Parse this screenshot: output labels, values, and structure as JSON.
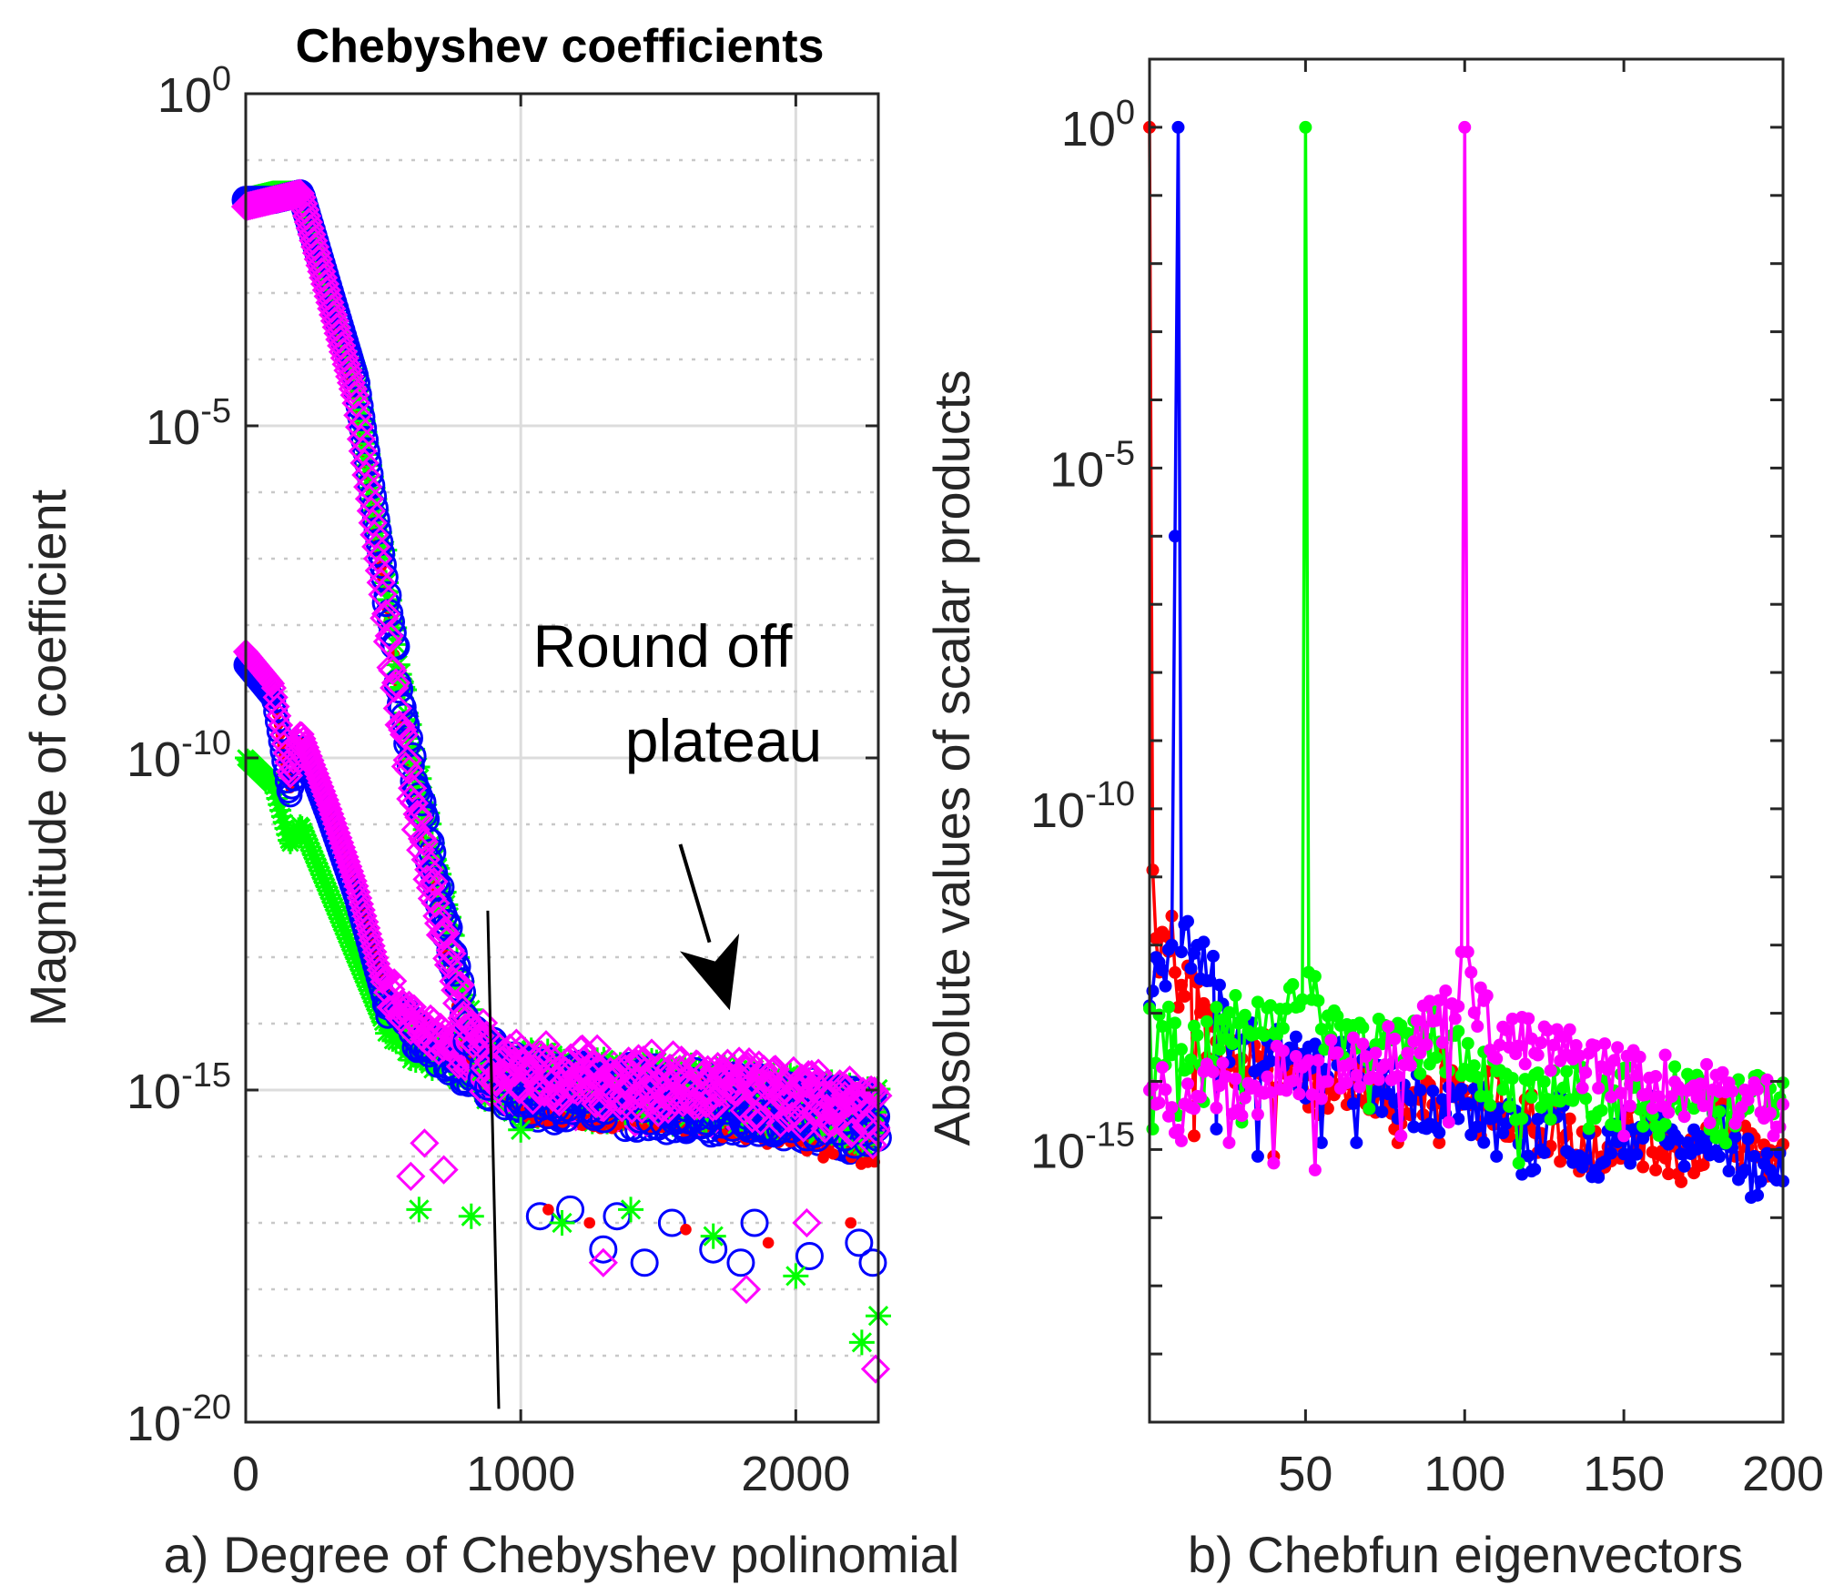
{
  "chart_data": [
    {
      "type": "scatter",
      "panel": "a",
      "title": "Chebyshev coefficients",
      "xlabel": "a) Degree of Chebyshev polinomial",
      "ylabel": "Magnitude of coefficient",
      "xlim": [
        0,
        2300
      ],
      "ylim_log10": [
        -20,
        0
      ],
      "x_ticks": [
        {
          "value": 0,
          "label": "0"
        },
        {
          "value": 1000,
          "label": "1000"
        },
        {
          "value": 2000,
          "label": "2000"
        }
      ],
      "y_ticks": [
        {
          "exp": 0,
          "base": "10",
          "sup": "0"
        },
        {
          "exp": -5,
          "base": "10",
          "sup": "-5"
        },
        {
          "exp": -10,
          "base": "10",
          "sup": "-10"
        },
        {
          "exp": -15,
          "base": "10",
          "sup": "-15"
        },
        {
          "exp": -20,
          "base": "10",
          "sup": "-20"
        }
      ],
      "grid": true,
      "annotation": {
        "lines": [
          "Round off",
          "plateau"
        ],
        "arrow_from": [
          1580,
          -11.3
        ],
        "arrow_to": [
          1760,
          -13.8
        ]
      },
      "cutoff_line": {
        "x": [
          880,
          920
        ],
        "log10_y": [
          -12.3,
          -19.8
        ]
      },
      "series": [
        {
          "name": "red",
          "color": "#ff0000",
          "marker": "dot",
          "x": [
            0,
            100,
            200,
            400,
            600,
            800,
            900,
            1000,
            1200,
            1500,
            1800,
            2100,
            2300
          ],
          "log10_y": [
            -1.7,
            -1.6,
            -1.5,
            -4.5,
            -10.2,
            -14.2,
            -14.8,
            -15.0,
            -15.1,
            -15.2,
            -15.3,
            -15.6,
            -15.8
          ]
        },
        {
          "name": "blue",
          "color": "#0000ff",
          "marker": "circle",
          "x": [
            0,
            100,
            200,
            400,
            600,
            800,
            900,
            1000,
            1200,
            1500,
            1800,
            2100,
            2300
          ],
          "log10_y": [
            -1.6,
            -1.6,
            -1.5,
            -4.3,
            -10.0,
            -14.0,
            -14.7,
            -14.9,
            -15.0,
            -15.1,
            -15.2,
            -15.3,
            -15.5
          ]
        },
        {
          "name": "green",
          "color": "#00ff00",
          "marker": "asterisk",
          "x": [
            0,
            100,
            200,
            400,
            600,
            800,
            900,
            1000,
            1200,
            1500,
            1800,
            2100,
            2300
          ],
          "log10_y": [
            -1.6,
            -1.5,
            -1.5,
            -4.2,
            -9.8,
            -13.9,
            -14.6,
            -14.8,
            -14.9,
            -15.0,
            -15.1,
            -15.3,
            -15.4
          ]
        },
        {
          "name": "magenta",
          "color": "#ff00ff",
          "marker": "diamond",
          "x": [
            0,
            100,
            200,
            400,
            600,
            800,
            900,
            1000,
            1200,
            1500,
            1800,
            2100,
            2300
          ],
          "log10_y": [
            -1.7,
            -1.6,
            -1.5,
            -4.6,
            -10.6,
            -14.0,
            -14.5,
            -14.7,
            -14.8,
            -14.9,
            -15.0,
            -15.2,
            -15.4
          ]
        }
      ],
      "secondary_series": [
        {
          "name": "red",
          "color": "#ff0000",
          "x": [
            0,
            100,
            160,
            200,
            300,
            400,
            500,
            600,
            700,
            800,
            1000,
            1500,
            2000,
            2300
          ],
          "log10_y": [
            -8.5,
            -9.0,
            -10.5,
            -9.7,
            -10.8,
            -12.0,
            -13.5,
            -14.0,
            -14.3,
            -14.6,
            -15.0,
            -15.2,
            -15.3,
            -15.6
          ]
        },
        {
          "name": "blue",
          "color": "#0000ff",
          "x": [
            0,
            100,
            160,
            200,
            300,
            400,
            500,
            600,
            700,
            800,
            1000,
            1500,
            2000,
            2300
          ],
          "log10_y": [
            -8.6,
            -9.1,
            -10.6,
            -9.8,
            -10.9,
            -12.1,
            -13.6,
            -14.1,
            -14.4,
            -14.7,
            -15.0,
            -15.2,
            -15.3,
            -15.6
          ]
        },
        {
          "name": "green",
          "color": "#00ff00",
          "x": [
            0,
            100,
            160,
            200,
            300,
            400,
            500,
            600,
            700,
            800,
            1000,
            1500,
            2000,
            2300
          ],
          "log10_y": [
            -10.0,
            -10.4,
            -11.3,
            -11.0,
            -12.0,
            -13.0,
            -14.0,
            -14.3,
            -14.5,
            -14.7,
            -15.0,
            -15.1,
            -15.2,
            -15.4
          ]
        },
        {
          "name": "magenta",
          "color": "#ff00ff",
          "x": [
            0,
            100,
            160,
            200,
            300,
            400,
            500,
            600,
            700,
            800,
            1000,
            1500,
            2000,
            2300
          ],
          "log10_y": [
            -8.4,
            -8.9,
            -10.3,
            -9.6,
            -10.7,
            -11.9,
            -13.4,
            -13.9,
            -14.2,
            -14.5,
            -14.9,
            -15.1,
            -15.2,
            -15.5
          ]
        }
      ],
      "outliers": [
        {
          "color": "#0000ff",
          "marker": "circle",
          "x": [
            1070,
            1180,
            1300,
            1350,
            1450,
            1550,
            1700,
            1800,
            1850,
            2050,
            2230,
            2280
          ],
          "log10_y": [
            -16.9,
            -16.8,
            -17.4,
            -16.9,
            -17.6,
            -17.0,
            -17.4,
            -17.6,
            -17.0,
            -17.5,
            -17.3,
            -17.6
          ]
        },
        {
          "color": "#ff00ff",
          "marker": "diamond",
          "x": [
            600,
            650,
            720,
            1300,
            1820,
            2040,
            2290
          ],
          "log10_y": [
            -16.3,
            -15.8,
            -16.2,
            -17.6,
            -18.0,
            -17.0,
            -19.2
          ]
        },
        {
          "color": "#00ff00",
          "marker": "asterisk",
          "x": [
            630,
            820,
            1000,
            1150,
            1400,
            1700,
            2000,
            2240,
            2300
          ],
          "log10_y": [
            -16.8,
            -16.9,
            -15.6,
            -17.0,
            -16.8,
            -17.2,
            -17.8,
            -18.8,
            -18.4
          ]
        },
        {
          "color": "#ff0000",
          "marker": "dot",
          "x": [
            1100,
            1250,
            1600,
            1900,
            2200
          ],
          "log10_y": [
            -16.8,
            -17.0,
            -17.1,
            -17.3,
            -17.0
          ]
        }
      ]
    },
    {
      "type": "line",
      "panel": "b",
      "title": "",
      "xlabel": "b) Chebfun eigenvectors",
      "ylabel": "Absolute values of scalar products",
      "xlim": [
        1,
        200
      ],
      "ylim_log10": [
        -19,
        1
      ],
      "x_ticks": [
        {
          "value": 50,
          "label": "50"
        },
        {
          "value": 100,
          "label": "100"
        },
        {
          "value": 150,
          "label": "150"
        },
        {
          "value": 200,
          "label": "200"
        }
      ],
      "y_ticks": [
        {
          "exp": 0,
          "base": "10",
          "sup": "0"
        },
        {
          "exp": -5,
          "base": "10",
          "sup": "-5"
        },
        {
          "exp": -10,
          "base": "10",
          "sup": "-10"
        },
        {
          "exp": -15,
          "base": "10",
          "sup": "-15"
        }
      ],
      "grid": false,
      "series": [
        {
          "name": "red",
          "color": "#ff0000",
          "peak_index": 1,
          "x": [
            1,
            2,
            3,
            4,
            5,
            8,
            10,
            15,
            20,
            30,
            40,
            50,
            60,
            70,
            80,
            90,
            100,
            110,
            120,
            130,
            140,
            150,
            160,
            170,
            180,
            190,
            200
          ],
          "log10_y": [
            0.0,
            -10.9,
            -11.9,
            -12.3,
            -12.1,
            -11.9,
            -12.6,
            -12.8,
            -13.4,
            -13.8,
            -13.6,
            -14.0,
            -14.1,
            -14.0,
            -14.6,
            -13.9,
            -14.2,
            -14.3,
            -14.6,
            -14.8,
            -15.0,
            -14.7,
            -14.9,
            -15.1,
            -14.6,
            -15.0,
            -15.2
          ]
        },
        {
          "name": "blue",
          "color": "#0000ff",
          "peak_index": 10,
          "x": [
            1,
            3,
            5,
            8,
            10,
            11,
            12,
            15,
            20,
            25,
            30,
            40,
            50,
            60,
            70,
            80,
            90,
            100,
            110,
            120,
            130,
            140,
            150,
            160,
            170,
            180,
            190,
            200
          ],
          "log10_y": [
            -12.6,
            -12.2,
            -12.3,
            -12.0,
            0.0,
            -12.1,
            -11.7,
            -12.3,
            -12.4,
            -13.2,
            -13.6,
            -13.5,
            -13.8,
            -13.8,
            -14.0,
            -14.2,
            -14.3,
            -14.4,
            -14.6,
            -15.0,
            -14.5,
            -15.2,
            -14.8,
            -14.6,
            -15.1,
            -14.8,
            -15.3,
            -15.2
          ]
        },
        {
          "name": "green",
          "color": "#00ff00",
          "peak_index": 50,
          "x": [
            1,
            5,
            10,
            15,
            20,
            25,
            30,
            35,
            40,
            45,
            48,
            49,
            50,
            51,
            52,
            55,
            60,
            70,
            80,
            90,
            100,
            110,
            120,
            130,
            140,
            150,
            160,
            170,
            180,
            190,
            200
          ],
          "log10_y": [
            -13.3,
            -13.3,
            -13.4,
            -13.5,
            -13.4,
            -13.3,
            -13.0,
            -13.1,
            -13.0,
            -12.8,
            -12.9,
            -12.8,
            0.0,
            -12.4,
            -12.8,
            -13.1,
            -13.2,
            -13.3,
            -13.6,
            -13.4,
            -13.5,
            -14.1,
            -14.4,
            -14.0,
            -14.3,
            -14.2,
            -14.4,
            -14.0,
            -14.5,
            -14.3,
            -14.2
          ]
        },
        {
          "name": "magenta",
          "color": "#ff00ff",
          "peak_index": 100,
          "x": [
            1,
            5,
            10,
            20,
            30,
            40,
            50,
            60,
            70,
            80,
            90,
            95,
            98,
            99,
            100,
            101,
            102,
            105,
            110,
            120,
            130,
            140,
            150,
            160,
            170,
            180,
            190,
            200
          ],
          "log10_y": [
            -14.5,
            -14.0,
            -14.5,
            -14.0,
            -14.3,
            -13.9,
            -14.0,
            -13.8,
            -13.6,
            -13.5,
            -13.1,
            -13.0,
            -12.9,
            -12.1,
            0.0,
            -12.1,
            -12.4,
            -13.0,
            -13.3,
            -13.5,
            -13.6,
            -13.7,
            -13.9,
            -14.0,
            -14.1,
            -14.2,
            -14.3,
            -14.4
          ]
        }
      ],
      "dips": [
        {
          "color": "#ff0000",
          "x": [
            15,
            40,
            78,
            92,
            105,
            140,
            160,
            185
          ],
          "log10_y": [
            -14.8,
            -15.1,
            -14.7,
            -14.9,
            -14.8,
            -15.3,
            -15.3,
            -15.1
          ]
        },
        {
          "color": "#0000ff",
          "x": [
            22,
            35,
            55,
            66,
            110,
            140,
            170,
            188,
            197
          ],
          "log10_y": [
            -14.7,
            -15.1,
            -14.9,
            -14.9,
            -15.1,
            -15.4,
            -14.9,
            -15.3,
            -15.4
          ]
        },
        {
          "color": "#00ff00",
          "x": [
            2,
            10,
            18,
            30,
            50,
            70,
            117
          ],
          "log10_y": [
            -14.7,
            -14.5,
            -14.3,
            -14.6,
            -14.5,
            -14.4,
            -15.2
          ]
        },
        {
          "color": "#ff00ff",
          "x": [
            15,
            26,
            40,
            53,
            80,
            95,
            150
          ],
          "log10_y": [
            -14.4,
            -14.9,
            -15.2,
            -15.3,
            -14.8,
            -14.6,
            -14.8
          ]
        }
      ]
    }
  ]
}
